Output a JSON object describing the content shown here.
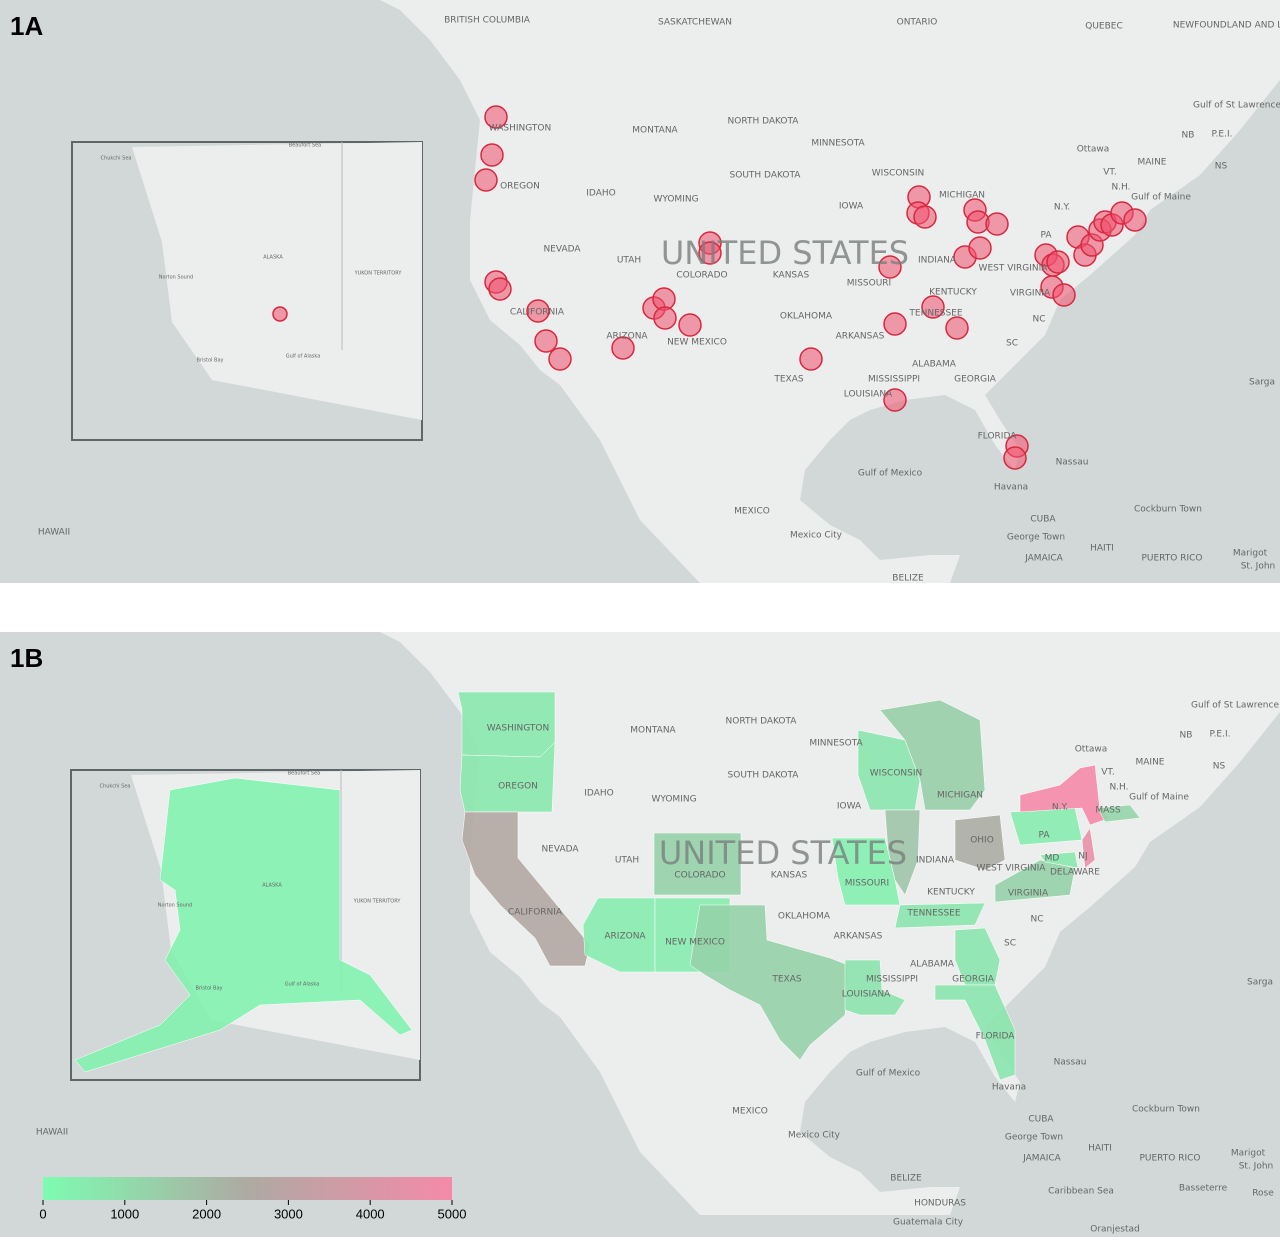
{
  "panels": [
    {
      "label": "1A"
    },
    {
      "label": "1B"
    }
  ],
  "map_labels": [
    "BRITISH COLUMBIA",
    "SASKATCHEWAN",
    "ONTARIO",
    "QUEBEC",
    "NEWFOUNDLAND AND LABRADOR",
    "WASHINGTON",
    "MONTANA",
    "NORTH DAKOTA",
    "MINNESOTA",
    "OREGON",
    "IDAHO",
    "WYOMING",
    "SOUTH DAKOTA",
    "WISCONSIN",
    "MICHIGAN",
    "IOWA",
    "NEVADA",
    "UTAH",
    "COLORADO",
    "KANSAS",
    "MISSOURI",
    "INDIANA",
    "KENTUCKY",
    "WEST VIRGINIA",
    "VIRGINIA",
    "PA",
    "N.Y.",
    "N.H.",
    "VT.",
    "MAINE",
    "NB",
    "P.E.I.",
    "NS",
    "Gulf of Maine",
    "Gulf of St Lawrence",
    "Ottawa",
    "CALIFORNIA",
    "ARIZONA",
    "NEW MEXICO",
    "OKLAHOMA",
    "ARKANSAS",
    "TENNESSEE",
    "NC",
    "SC",
    "ALABAMA",
    "MISSISSIPPI",
    "GEORGIA",
    "TEXAS",
    "LOUISIANA",
    "FLORIDA",
    "Gulf of Mexico",
    "Nassau",
    "Havana",
    "MEXICO",
    "Mexico City",
    "CUBA",
    "George Town",
    "JAMAICA",
    "HAITI",
    "Cockburn Town",
    "PUERTO RICO",
    "Marigot",
    "St. John",
    "Sarga",
    "HAWAII",
    "BELIZE",
    "UNITED STATES"
  ],
  "inset_labels": [
    "Chukchi Sea",
    "ALASKA",
    "Norton Sound",
    "YUKON TERRITORY",
    "Gulf of Alaska",
    "Bristol Bay",
    "Beaufort Sea"
  ],
  "panel_b_labels": [
    "OHIO",
    "NJ",
    "MD",
    "MASS",
    "DELAWARE",
    "Caribbean Sea",
    "HONDURAS",
    "Guatemala City",
    "Basseterre",
    "Rose",
    "Oranjestad"
  ],
  "region_values": [
    600,
    600,
    2700,
    1300,
    500,
    500,
    1300,
    800,
    400,
    700,
    1400,
    1700,
    2400,
    500,
    5000,
    4600,
    1200,
    1300,
    600,
    700,
    700,
    700,
    300
  ],
  "legend": {
    "range": [
      0,
      5000
    ],
    "ticks": [
      0,
      1000,
      2000,
      3000,
      4000,
      5000
    ],
    "colors": [
      "#7dfcb1",
      "#aeaaa2",
      "#f58aa8"
    ]
  }
}
